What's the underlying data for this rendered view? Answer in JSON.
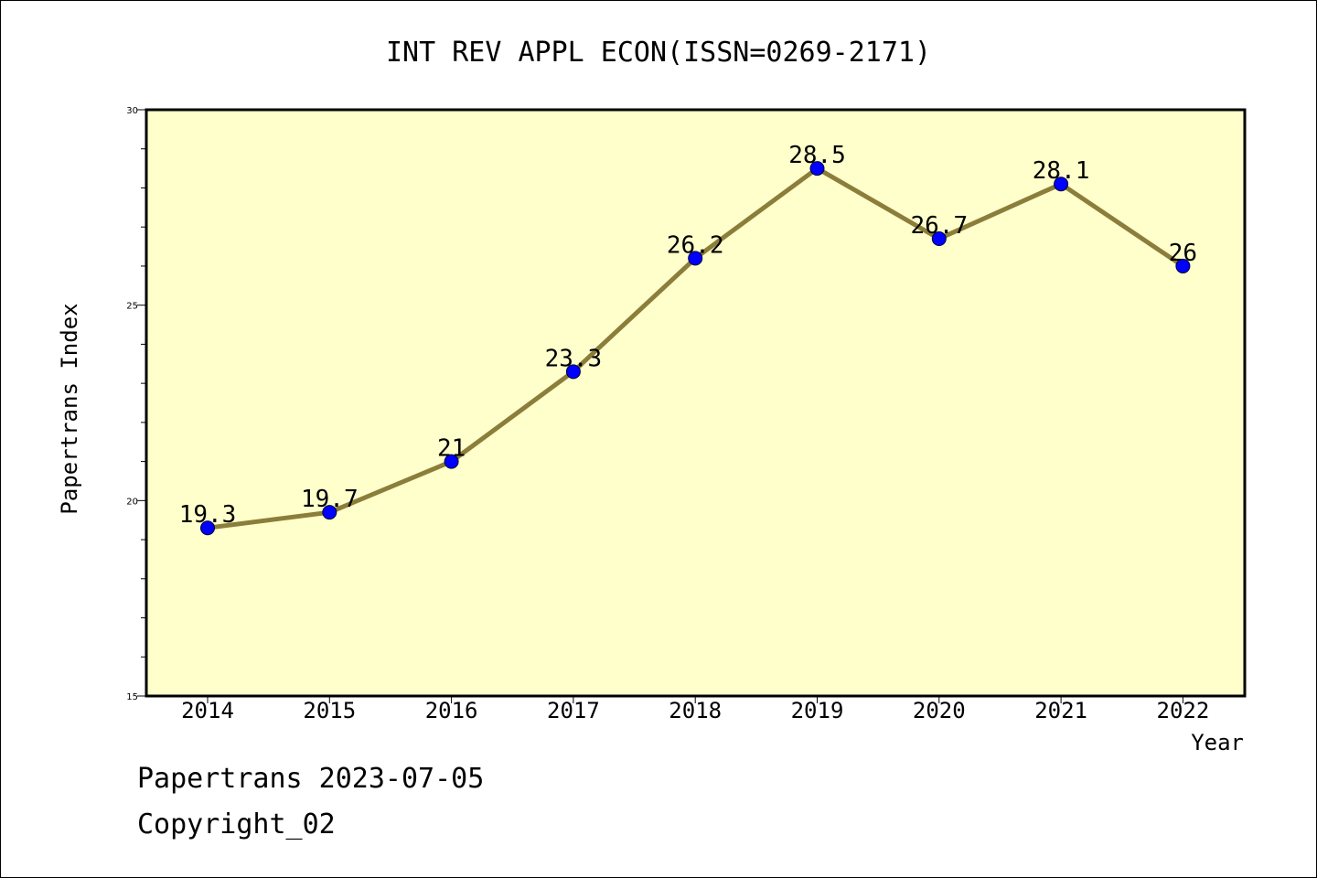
{
  "chart_data": {
    "type": "line",
    "title": "INT REV APPL ECON(ISSN=0269-2171)",
    "xlabel": "Year",
    "ylabel": "Papertrans Index",
    "x": [
      "2014",
      "2015",
      "2016",
      "2017",
      "2018",
      "2019",
      "2020",
      "2021",
      "2022"
    ],
    "series": [
      {
        "values": [
          19.3,
          19.7,
          21,
          23.3,
          26.2,
          28.5,
          26.7,
          28.1,
          26
        ],
        "labels": [
          "19.3",
          "19.7",
          "21",
          "23.3",
          "26.2",
          "28.5",
          "26.7",
          "28.1",
          "26"
        ]
      }
    ],
    "ylim": [
      15,
      30
    ],
    "yticks": [
      15,
      20,
      25,
      30
    ],
    "y_minor_step": 1,
    "grid": false,
    "colors": {
      "plot_background": "#ffffcc",
      "line": "#8b7d3a",
      "marker": "#0000ff"
    }
  },
  "footer": {
    "line1": "Papertrans 2023-07-05",
    "line2": "Copyright_02"
  }
}
